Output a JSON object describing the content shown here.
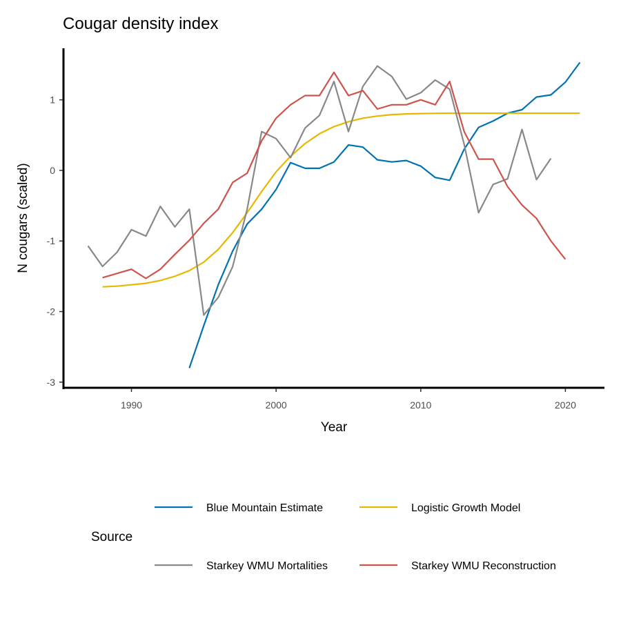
{
  "chart_data": {
    "type": "line",
    "title": "Cougar density index",
    "xlabel": "Year",
    "ylabel": "N cougars (scaled)",
    "xlim": [
      1985.3,
      2022.7
    ],
    "ylim": [
      -3.08,
      1.73
    ],
    "xticks": [
      1990,
      2000,
      2010,
      2020
    ],
    "yticks": [
      -3,
      -2,
      -1,
      0,
      1
    ],
    "grid": false,
    "legend": {
      "title": "Source",
      "position": "bottom"
    },
    "series": [
      {
        "name": "Blue Mountain Estimate",
        "color": "#0072B2",
        "x": [
          1994,
          1995,
          1996,
          1997,
          1998,
          1999,
          2000,
          2001,
          2002,
          2003,
          2004,
          2005,
          2006,
          2007,
          2008,
          2009,
          2010,
          2011,
          2012,
          2013,
          2014,
          2015,
          2016,
          2017,
          2018,
          2019,
          2020,
          2021
        ],
        "y": [
          -2.8,
          -2.2,
          -1.62,
          -1.14,
          -0.76,
          -0.55,
          -0.27,
          0.11,
          0.03,
          0.03,
          0.12,
          0.36,
          0.33,
          0.15,
          0.12,
          0.14,
          0.06,
          -0.1,
          -0.14,
          0.3,
          0.61,
          0.7,
          0.81,
          0.86,
          1.04,
          1.07,
          1.25,
          1.53
        ]
      },
      {
        "name": "Logistic Growth Model",
        "color": "#E6B800",
        "x": [
          1988,
          1989,
          1990,
          1991,
          1992,
          1993,
          1994,
          1995,
          1996,
          1997,
          1998,
          1999,
          2000,
          2001,
          2002,
          2003,
          2004,
          2005,
          2006,
          2007,
          2008,
          2009,
          2010,
          2011,
          2012,
          2013,
          2014,
          2015,
          2016,
          2017,
          2018,
          2019,
          2020,
          2021
        ],
        "y": [
          -1.65,
          -1.64,
          -1.62,
          -1.6,
          -1.56,
          -1.5,
          -1.42,
          -1.3,
          -1.12,
          -0.88,
          -0.6,
          -0.3,
          -0.02,
          0.2,
          0.38,
          0.52,
          0.62,
          0.69,
          0.74,
          0.77,
          0.79,
          0.8,
          0.805,
          0.808,
          0.81,
          0.81,
          0.81,
          0.81,
          0.81,
          0.81,
          0.81,
          0.81,
          0.81,
          0.81
        ]
      },
      {
        "name": "Starkey WMU Mortalities",
        "color": "#888888",
        "x": [
          1987,
          1988,
          1989,
          1990,
          1991,
          1992,
          1993,
          1994,
          1995,
          1996,
          1997,
          1998,
          1999,
          2000,
          2001,
          2002,
          2003,
          2004,
          2005,
          2006,
          2007,
          2008,
          2009,
          2010,
          2011,
          2012,
          2013,
          2014,
          2015,
          2016,
          2017,
          2018,
          2019
        ],
        "y": [
          -1.07,
          -1.36,
          -1.16,
          -0.84,
          -0.93,
          -0.51,
          -0.8,
          -0.55,
          -2.05,
          -1.8,
          -1.36,
          -0.55,
          0.55,
          0.45,
          0.18,
          0.6,
          0.78,
          1.26,
          0.55,
          1.19,
          1.48,
          1.33,
          1.01,
          1.1,
          1.28,
          1.15,
          0.37,
          -0.6,
          -0.2,
          -0.12,
          0.58,
          -0.13,
          0.17
        ]
      },
      {
        "name": "Starkey WMU Reconstruction",
        "color": "#CD534C",
        "x": [
          1988,
          1989,
          1990,
          1991,
          1992,
          1993,
          1994,
          1995,
          1996,
          1997,
          1998,
          1999,
          2000,
          2001,
          2002,
          2003,
          2004,
          2005,
          2006,
          2007,
          2008,
          2009,
          2010,
          2011,
          2012,
          2013,
          2014,
          2015,
          2016,
          2017,
          2018,
          2019,
          2020
        ],
        "y": [
          -1.52,
          -1.46,
          -1.4,
          -1.53,
          -1.4,
          -1.19,
          -0.99,
          -0.75,
          -0.55,
          -0.17,
          -0.04,
          0.42,
          0.74,
          0.93,
          1.06,
          1.06,
          1.39,
          1.06,
          1.13,
          0.87,
          0.93,
          0.93,
          1.0,
          0.93,
          1.26,
          0.55,
          0.16,
          0.16,
          -0.23,
          -0.49,
          -0.68,
          -1.0,
          -1.26
        ]
      }
    ]
  }
}
